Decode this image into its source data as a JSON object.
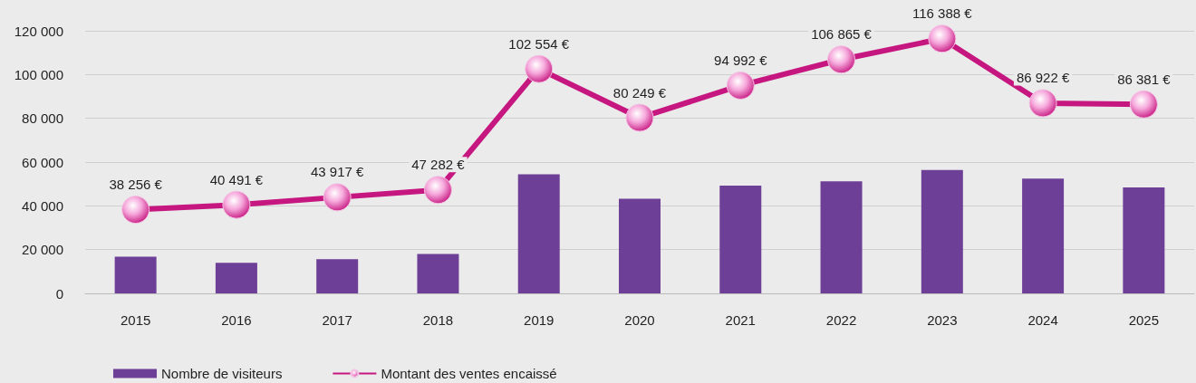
{
  "chart_data": {
    "type": "bar",
    "categories": [
      "2015",
      "2016",
      "2017",
      "2018",
      "2019",
      "2020",
      "2021",
      "2022",
      "2023",
      "2024",
      "2025"
    ],
    "series": [
      {
        "name": "Nombre de visiteurs",
        "color": "#6e3f97",
        "values": [
          16800,
          14000,
          15600,
          18000,
          54400,
          43200,
          49200,
          51200,
          56400,
          52400,
          48400
        ]
      },
      {
        "name": "Montant des ventes encaissé",
        "type": "line",
        "color": "#c6167f",
        "marker": "circle",
        "values": [
          38256,
          40491,
          43917,
          47282,
          102554,
          80249,
          94992,
          106865,
          116388,
          86922,
          86381
        ],
        "value_labels": [
          "38 256 €",
          "40 491 €",
          "43 917 €",
          "47 282 €",
          "102 554 €",
          "80 249 €",
          "94 992 €",
          "106 865 €",
          "116 388 €",
          "86 922 €",
          "86 381 €"
        ]
      }
    ],
    "ylim": [
      0,
      120000
    ],
    "yticks": [
      {
        "value": 0,
        "label": "0"
      },
      {
        "value": 20000,
        "label": "20 000"
      },
      {
        "value": 40000,
        "label": "40 000"
      },
      {
        "value": 60000,
        "label": "60 000"
      },
      {
        "value": 80000,
        "label": "80 000"
      },
      {
        "value": 100000,
        "label": "100 000"
      },
      {
        "value": 120000,
        "label": "120 000"
      }
    ],
    "grid": "y",
    "legend": "bottom left"
  }
}
